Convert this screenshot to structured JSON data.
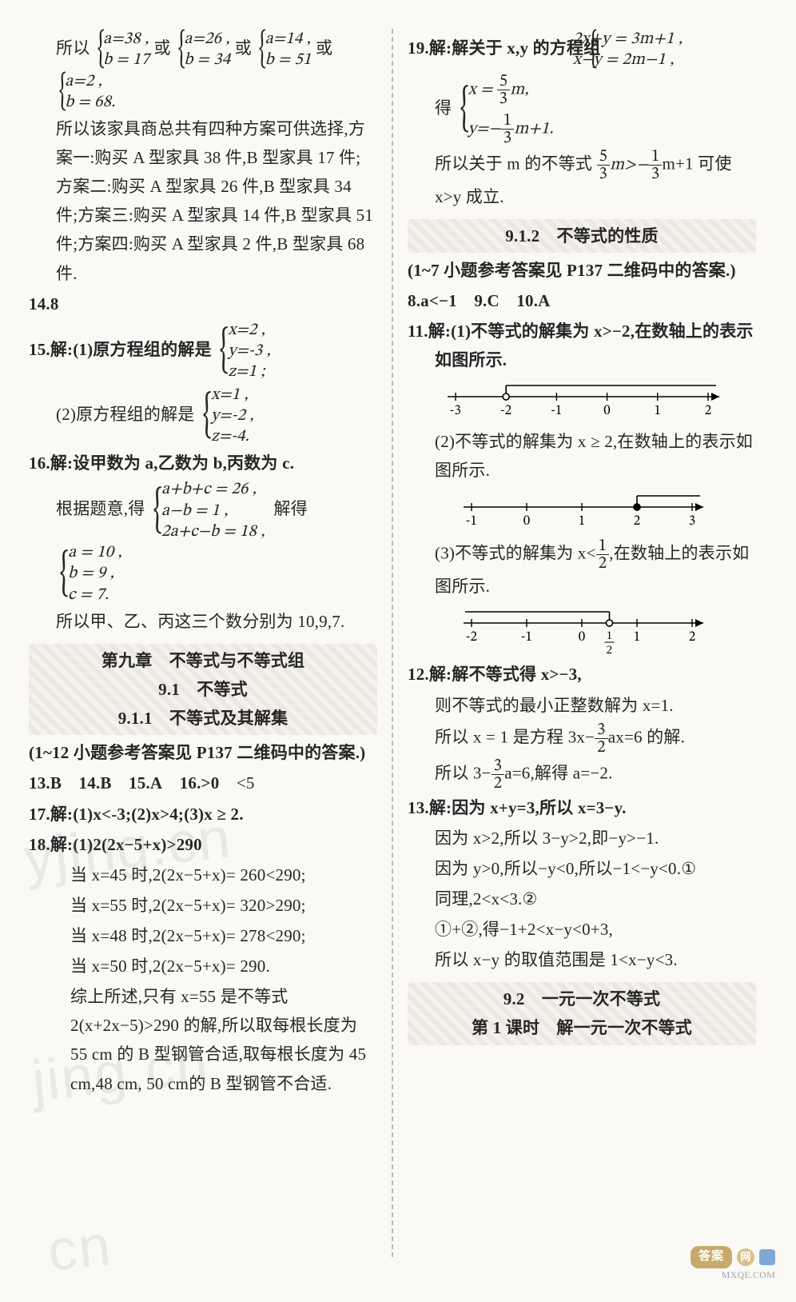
{
  "left": {
    "p1": "所以",
    "opt_or": "或",
    "opts": [
      {
        "a": "a=38 ,",
        "b": "b = 17"
      },
      {
        "a": "a=26 ,",
        "b": "b = 34"
      },
      {
        "a": "a=14 ,",
        "b": "b = 51"
      },
      {
        "a": "a=2 ,",
        "b": "b = 68."
      }
    ],
    "p2": "所以该家具商总共有四种方案可供选择,方案一:购买 A 型家具 38 件,B 型家具 17 件;方案二:购买 A 型家具 26 件,B 型家具 34 件;方案三:购买 A 型家具 14 件,B 型家具 51 件;方案四:购买 A 型家具 2 件,B 型家具 68 件.",
    "q14": "14.8",
    "q15_head": "15.解:(1)原方程组的解是",
    "q15_1": [
      "x=2 ,",
      "y=-3 ,",
      "z=1 ;"
    ],
    "q15_2_head": "(2)原方程组的解是",
    "q15_2": [
      "x=1 ,",
      "y=-2 ,",
      "z=-4."
    ],
    "q16_head": "16.解:设甲数为 a,乙数为 b,丙数为 c.",
    "q16_mid": "根据题意,得",
    "q16_cases": [
      "a+b+c = 26 ,",
      "a−b = 1 ,",
      "2a+c−b = 18 ,"
    ],
    "q16_mid2": "解得",
    "q16_sol": [
      "a = 10 ,",
      "b = 9 ,",
      "c = 7."
    ],
    "q16_tail": "所以甲、乙、丙这三个数分别为 10,9,7.",
    "ch_hdr": "第九章　不等式与不等式组",
    "ch_s1": "9.1　不等式",
    "ch_s2": "9.1.1　不等式及其解集",
    "note1": "(1~12 小题参考答案见 P137 二维码中的答案.)",
    "row1": {
      "a": "13.B",
      "b": "14.B",
      "c": "15.A",
      "d": "16.>0",
      "e": "<5"
    },
    "q17": "17.解:(1)x<-3;(2)x>4;(3)x ≥ 2.",
    "q18_1": "18.解:(1)2(2x−5+x)>290",
    "q18_2": "当 x=45 时,2(2x−5+x)= 260<290;",
    "q18_3": "当 x=55 时,2(2x−5+x)= 320>290;",
    "q18_4": "当 x=48 时,2(2x−5+x)= 278<290;",
    "q18_5": "当 x=50 时,2(2x−5+x)= 290.",
    "q18_6": "综上所述,只有 x=55 是不等式 2(x+2x−5)>290 的解,所以取每根长度为 55 cm 的 B 型钢管合适,取每根长度为 45 cm,48 cm, 50 cm的 B 型钢管不合适."
  },
  "right": {
    "q19_head": "19.解:解关于 x,y 的方程组",
    "q19_sys": [
      "2x+y = 3m+1 ,",
      "x−y = 2m−1 ,"
    ],
    "q19_mid": "得",
    "q19_sol_x_n": "5",
    "q19_sol_x_d": "3",
    "q19_sol_x_tail": "m,",
    "q19_sol_y_pre": "y=−",
    "q19_sol_y_n": "1",
    "q19_sol_y_d": "3",
    "q19_sol_y_tail": "m+1.",
    "q19_p": "所以关于 m 的不等式",
    "q19_n1": "5",
    "q19_d1": "3",
    "q19_mid2": "m>−",
    "q19_n2": "1",
    "q19_d2": "3",
    "q19_tail": "m+1 可使 x>y 成立.",
    "ch_s3": "9.1.2　不等式的性质",
    "note2": "(1~7 小题参考答案见 P137 二维码中的答案.)",
    "row2": {
      "a": "8.a<−1",
      "b": "9.C",
      "c": "10.A"
    },
    "q11_1": "11.解:(1)不等式的解集为 x>−2,在数轴上的表示如图所示.",
    "nl1": {
      "ticks": [
        -3,
        -2,
        -1,
        0,
        1,
        2
      ],
      "open": -2,
      "dir": "right"
    },
    "q11_2": "(2)不等式的解集为 x ≥ 2,在数轴上的表示如图所示.",
    "nl2": {
      "ticks": [
        -1,
        0,
        1,
        2,
        3
      ],
      "closed": 2,
      "dir": "right"
    },
    "q11_3a": "(3)不等式的解集为 x<",
    "q11_3n": "1",
    "q11_3d": "2",
    "q11_3b": ",在数轴上的表示如图所示.",
    "nl3": {
      "ticks": [
        -2,
        -1,
        0,
        1,
        2
      ],
      "half_open": 0.5,
      "dir": "left"
    },
    "q12_1": "12.解:解不等式得 x>−3,",
    "q12_2": "则不等式的最小正整数解为 x=1.",
    "q12_3a": "所以 x = 1 是方程 3x−",
    "q12_3n": "3",
    "q12_3d": "2",
    "q12_3b": "ax=6 的解.",
    "q12_4a": "所以 3−",
    "q12_4n": "3",
    "q12_4d": "2",
    "q12_4b": "a=6,解得 a=−2.",
    "q13_1": "13.解:因为 x+y=3,所以 x=3−y.",
    "q13_2": "因为 x>2,所以 3−y>2,即−y>−1.",
    "q13_3": "因为 y>0,所以−y<0,所以−1<−y<0.①",
    "q13_4": "同理,2<x<3.②",
    "q13_5": "①+②,得−1+2<x−y<0+3,",
    "q13_6": "所以 x−y 的取值范围是 1<x−y<3.",
    "ch_s4": "9.2　一元一次不等式",
    "ch_s5": "第 1 课时　解一元一次不等式"
  },
  "footer": {
    "brand": "答案",
    "site": "MXQE.COM"
  }
}
